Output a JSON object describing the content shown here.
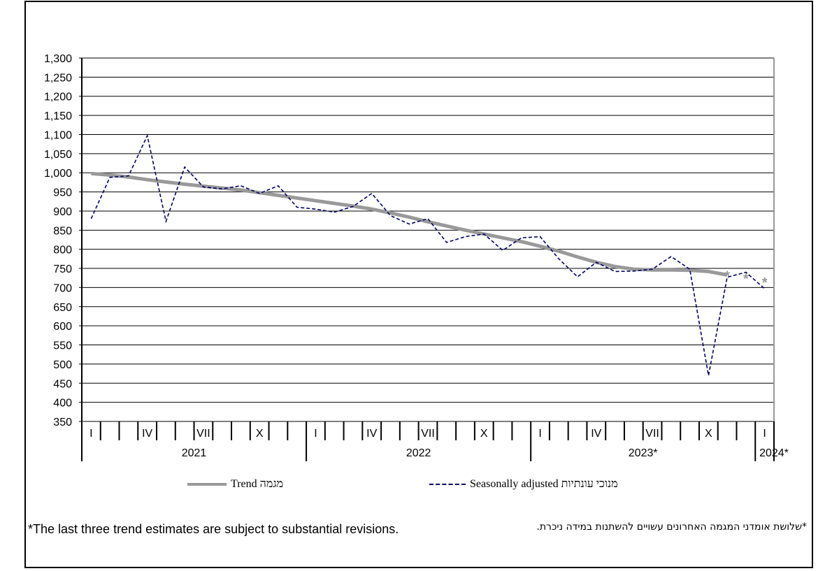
{
  "chart_data": {
    "type": "line",
    "title": "",
    "xlabel": "",
    "ylabel": "",
    "ylim": [
      350,
      1300
    ],
    "ytick_step": 50,
    "grid": true,
    "years": [
      {
        "label": "2021",
        "months": 12
      },
      {
        "label": "2022",
        "months": 12
      },
      {
        "label": "2023*",
        "months": 12
      },
      {
        "label": "2024*",
        "months": 1
      }
    ],
    "month_labels": {
      "0": "I",
      "3": "IV",
      "6": "VII",
      "9": "X"
    },
    "series": [
      {
        "name": "Seasonally adjusted מנוכי עונתיות",
        "color": "#000066",
        "style": "dashed",
        "values": [
          880,
          988,
          992,
          1097,
          873,
          1015,
          963,
          958,
          966,
          946,
          966,
          910,
          905,
          897,
          912,
          946,
          888,
          866,
          880,
          818,
          833,
          840,
          797,
          830,
          833,
          775,
          728,
          766,
          742,
          743,
          748,
          781,
          748,
          470,
          727,
          740,
          697
        ]
      },
      {
        "name": "Trend מגמה",
        "color": "#999999",
        "style": "solid",
        "provisional_last": 3,
        "values": [
          998,
          994,
          989,
          982,
          976,
          970,
          965,
          960,
          955,
          948,
          941,
          934,
          927,
          920,
          913,
          905,
          895,
          884,
          872,
          861,
          850,
          840,
          830,
          820,
          808,
          795,
          780,
          766,
          755,
          748,
          746,
          746,
          745,
          742,
          733,
          725,
          715
        ]
      }
    ],
    "legend_placement": "bottom"
  },
  "legend": {
    "trend": "Trend מגמה",
    "seasonal": "Seasonally adjusted מנוכי עונתיות"
  },
  "notes": {
    "english": "*The last three trend estimates are subject to substantial revisions.",
    "hebrew": "*שלושת אומדני המגמה האחרונים עשויים להשתנות במידה ניכרת."
  }
}
